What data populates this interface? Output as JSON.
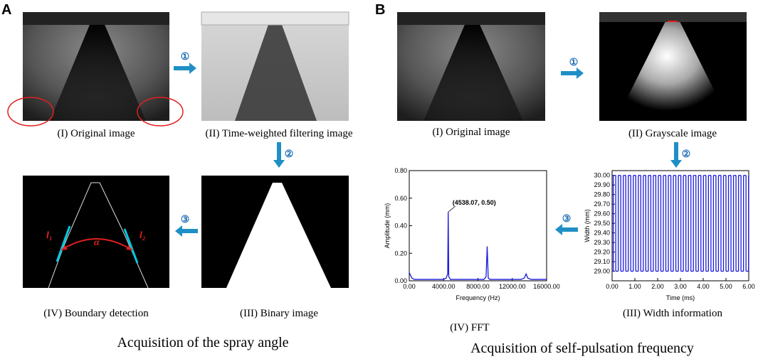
{
  "panel_a": {
    "label": "A",
    "title": "Acquisition of the spray angle",
    "steps": [
      "①",
      "②",
      "③"
    ],
    "captions": {
      "original": "(I) Original image",
      "filtered": "(II) Time-weighted filtering image",
      "binary": "(III) Binary image",
      "boundary": "(IV) Boundary detection"
    },
    "annotations": {
      "left": "l₁",
      "angle": "α",
      "right": "l₂"
    }
  },
  "panel_b": {
    "label": "B",
    "title": "Acquisition of self-pulsation frequency",
    "steps": [
      "①",
      "②",
      "③"
    ],
    "captions": {
      "original": "(I) Original image",
      "grayscale": "(II) Grayscale image",
      "width": "(III) Width information",
      "fft": "(IV) FFT"
    }
  },
  "chart_data": [
    {
      "type": "line",
      "xlabel": "Frequency (Hz)",
      "ylabel": "Amplitude (mm)",
      "color": "#1a1adc",
      "x": [
        0,
        300,
        600,
        1000,
        1500,
        2000,
        2500,
        3000,
        3500,
        4000,
        4300,
        4480,
        4538.07,
        4600,
        4800,
        5200,
        6000,
        7000,
        8000,
        8700,
        8950,
        9076,
        9200,
        9400,
        10000,
        11000,
        12000,
        13000,
        13400,
        13614,
        13800,
        14200,
        15000,
        16000
      ],
      "values": [
        0.06,
        0.02,
        0.01,
        0.01,
        0.01,
        0.01,
        0.01,
        0.01,
        0.01,
        0.01,
        0.02,
        0.05,
        0.5,
        0.03,
        0.01,
        0.01,
        0.01,
        0.01,
        0.01,
        0.01,
        0.03,
        0.25,
        0.02,
        0.01,
        0.01,
        0.01,
        0.01,
        0.01,
        0.02,
        0.05,
        0.02,
        0.01,
        0.01,
        0.01
      ],
      "xlim": [
        0,
        16000
      ],
      "ylim": [
        0,
        0.8
      ],
      "xticks": [
        {
          "value": 0,
          "label": "0.00"
        },
        {
          "value": 4000,
          "label": "4000.00"
        },
        {
          "value": 8000,
          "label": "8000.00"
        },
        {
          "value": 12000,
          "label": "12000.00"
        },
        {
          "value": 16000,
          "label": "16000.00"
        }
      ],
      "yticks": [
        {
          "value": 0,
          "label": "0.00"
        },
        {
          "value": 0.2,
          "label": "0.20"
        },
        {
          "value": 0.4,
          "label": "0.40"
        },
        {
          "value": 0.6,
          "label": "0.60"
        },
        {
          "value": 0.8,
          "label": "0.80"
        }
      ],
      "annotation": {
        "text": "(4538.07, 0.50)",
        "x": 4538.07,
        "y": 0.5
      }
    },
    {
      "type": "line",
      "drawstyle": "steps-post",
      "xlabel": "Time (ms)",
      "ylabel": "Width (mm)",
      "color": "#1a1adc",
      "x": [
        0,
        0.05,
        0.16,
        0.27,
        0.38,
        0.49,
        0.6,
        0.71,
        0.82,
        0.93,
        1.04,
        1.15,
        1.26,
        1.37,
        1.48,
        1.59,
        1.7,
        1.81,
        1.92,
        2.03,
        2.14,
        2.25,
        2.36,
        2.47,
        2.58,
        2.69,
        2.8,
        2.91,
        3.02,
        3.13,
        3.24,
        3.35,
        3.46,
        3.57,
        3.68,
        3.79,
        3.9,
        4.01,
        4.12,
        4.23,
        4.34,
        4.45,
        4.56,
        4.67,
        4.78,
        4.89,
        5.0,
        5.11,
        5.22,
        5.33,
        5.44,
        5.55,
        5.66,
        5.77,
        5.88,
        5.99
      ],
      "values": [
        29,
        30,
        29,
        30,
        29,
        30,
        29,
        30,
        29,
        30,
        29,
        30,
        29,
        30,
        29,
        30,
        29,
        30,
        29,
        30,
        29,
        30,
        29,
        30,
        29,
        30,
        29,
        30,
        29,
        30,
        29,
        30,
        29,
        30,
        29,
        30,
        29,
        30,
        29,
        30,
        29,
        30,
        29,
        30,
        29,
        30,
        29,
        30,
        29,
        30,
        29,
        30,
        29,
        30,
        29,
        30
      ],
      "xlim": [
        0,
        6
      ],
      "ylim": [
        28.9,
        30.05
      ],
      "xticks": [
        {
          "value": 0,
          "label": "0.00"
        },
        {
          "value": 1,
          "label": "1.00"
        },
        {
          "value": 2,
          "label": "2.00"
        },
        {
          "value": 3,
          "label": "3.00"
        },
        {
          "value": 4,
          "label": "4.00"
        },
        {
          "value": 5,
          "label": "5.00"
        },
        {
          "value": 6,
          "label": "6.00"
        }
      ],
      "yticks": [
        {
          "value": 29,
          "label": "29.00"
        },
        {
          "value": 29.1,
          "label": "29.10"
        },
        {
          "value": 29.2,
          "label": "29.20"
        },
        {
          "value": 29.3,
          "label": "29.30"
        },
        {
          "value": 29.4,
          "label": "29.40"
        },
        {
          "value": 29.5,
          "label": "29.50"
        },
        {
          "value": 29.6,
          "label": "29.60"
        },
        {
          "value": 29.7,
          "label": "29.70"
        },
        {
          "value": 29.8,
          "label": "29.80"
        },
        {
          "value": 29.9,
          "label": "29.90"
        },
        {
          "value": 30,
          "label": "30.00"
        }
      ]
    }
  ]
}
